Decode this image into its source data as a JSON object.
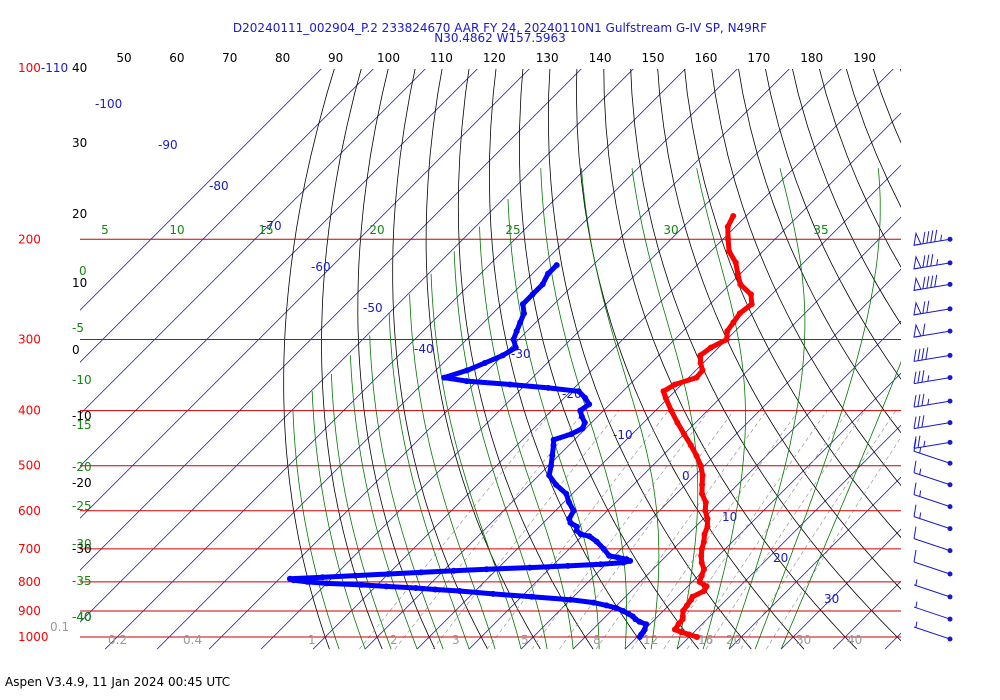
{
  "title": {
    "line1": "D20240111_002904_P.2 233824670 AAR FY 24, 20240110N1 Gulfstream G-IV SP, N49RF",
    "line2": "N30.4862 W157.5963"
  },
  "footer": "Aspen V3.4.9, 11 Jan 2024  00:45 UTC",
  "colors": {
    "temperature": "#ff0000",
    "dewpoint": "#0000ff",
    "isobar": "#cc0000",
    "isotherm": "#2222aa",
    "dry_adiabat": "#000000",
    "moist_adiabat": "#007700",
    "mixing_ratio": "#999999",
    "wind_barb": "#1a1acc"
  },
  "chart_data": {
    "type": "line",
    "subtype": "skew-T log-P diagram",
    "y_axis": {
      "quantity": "pressure (hPa)",
      "scale": "log",
      "range": [
        1000,
        100
      ],
      "ticks": [
        {
          "value": 100,
          "label": "100"
        },
        {
          "value": 200,
          "label": "200"
        },
        {
          "value": 300,
          "label": "300"
        },
        {
          "value": 400,
          "label": "400"
        },
        {
          "value": 500,
          "label": "500"
        },
        {
          "value": 600,
          "label": "600"
        },
        {
          "value": 700,
          "label": "700"
        },
        {
          "value": 800,
          "label": "800"
        },
        {
          "value": 900,
          "label": "900"
        },
        {
          "value": 1000,
          "label": "1000"
        }
      ],
      "extra_label": "-110"
    },
    "top_axis_ticks": [
      "50",
      "60",
      "70",
      "80",
      "90",
      "100",
      "110",
      "120",
      "130",
      "140",
      "150",
      "160",
      "170",
      "180",
      "190"
    ],
    "left_dry_adiabat_labels": [
      "40",
      "30",
      "20",
      "10",
      "0",
      "-10",
      "-20",
      "-30",
      "-40"
    ],
    "isotherm_labels": [
      "-100",
      "-90",
      "-80",
      "-70",
      "-60",
      "-50",
      "-40",
      "-30",
      "-20",
      "-10",
      "0",
      "10",
      "20",
      "30"
    ],
    "moist_adiabat_labels_top": [
      "5",
      "10",
      "15",
      "20",
      "25",
      "30",
      "35"
    ],
    "moist_adiabat_labels_left": [
      "0",
      "-5",
      "-10",
      "-15",
      "-20",
      "-25",
      "-30",
      "-35",
      "-40"
    ],
    "mixing_ratio_labels": [
      "0.1",
      "0.2",
      "0.4",
      "1",
      "2",
      "3",
      "5",
      "8",
      "12",
      "16",
      "20",
      "30",
      "40"
    ],
    "series": [
      {
        "name": "temperature",
        "points": [
          [
            1000,
            21.5
          ],
          [
            990,
            19.5
          ],
          [
            980,
            17.5
          ],
          [
            970,
            15.8
          ],
          [
            950,
            15.5
          ],
          [
            930,
            15.3
          ],
          [
            920,
            14.8
          ],
          [
            900,
            13.8
          ],
          [
            880,
            13.5
          ],
          [
            860,
            13.2
          ],
          [
            850,
            12.9
          ],
          [
            830,
            14
          ],
          [
            815,
            13.6
          ],
          [
            800,
            11.4
          ],
          [
            780,
            10.6
          ],
          [
            760,
            9.8
          ],
          [
            740,
            8.1
          ],
          [
            720,
            6.7
          ],
          [
            700,
            5.5
          ],
          [
            680,
            4.5
          ],
          [
            660,
            3.2
          ],
          [
            640,
            2.3
          ],
          [
            620,
            0.8
          ],
          [
            600,
            -1.2
          ],
          [
            580,
            -2.7
          ],
          [
            560,
            -5.1
          ],
          [
            540,
            -6.8
          ],
          [
            520,
            -8.5
          ],
          [
            500,
            -10.7
          ],
          [
            480,
            -13.5
          ],
          [
            460,
            -16.6
          ],
          [
            440,
            -20
          ],
          [
            420,
            -23.5
          ],
          [
            400,
            -27
          ],
          [
            380,
            -30.5
          ],
          [
            370,
            -32.2
          ],
          [
            360,
            -31.3
          ],
          [
            350,
            -28.5
          ],
          [
            340,
            -28.7
          ],
          [
            330,
            -30.5
          ],
          [
            320,
            -32
          ],
          [
            310,
            -31.5
          ],
          [
            300,
            -30
          ],
          [
            290,
            -31.5
          ],
          [
            280,
            -32
          ],
          [
            270,
            -32.5
          ],
          [
            260,
            -32
          ],
          [
            250,
            -34
          ],
          [
            240,
            -38
          ],
          [
            230,
            -40.5
          ],
          [
            220,
            -43
          ],
          [
            210,
            -46.5
          ],
          [
            200,
            -49
          ],
          [
            190,
            -51.5
          ],
          [
            182,
            -52.5
          ]
        ]
      },
      {
        "name": "dewpoint",
        "points": [
          [
            1000,
            10.5
          ],
          [
            990,
            10.3
          ],
          [
            980,
            10.2
          ],
          [
            970,
            10
          ],
          [
            950,
            9.3
          ],
          [
            940,
            7.5
          ],
          [
            930,
            6.2
          ],
          [
            920,
            5.2
          ],
          [
            910,
            3.8
          ],
          [
            900,
            2.3
          ],
          [
            890,
            0.5
          ],
          [
            880,
            -2
          ],
          [
            870,
            -5
          ],
          [
            860,
            -10
          ],
          [
            850,
            -18
          ],
          [
            840,
            -26
          ],
          [
            830,
            -33
          ],
          [
            825,
            -38
          ],
          [
            820,
            -42
          ],
          [
            815,
            -48
          ],
          [
            810,
            -53
          ],
          [
            805,
            -60
          ],
          [
            800,
            -64
          ],
          [
            795,
            -67
          ],
          [
            790,
            -68
          ],
          [
            785,
            -62
          ],
          [
            780,
            -56
          ],
          [
            775,
            -50
          ],
          [
            770,
            -44
          ],
          [
            765,
            -38
          ],
          [
            760,
            -32
          ],
          [
            755,
            -24
          ],
          [
            750,
            -17
          ],
          [
            745,
            -11
          ],
          [
            740,
            -7
          ],
          [
            735,
            -6
          ],
          [
            730,
            -7
          ],
          [
            725,
            -9
          ],
          [
            720,
            -11
          ],
          [
            700,
            -13.4
          ],
          [
            680,
            -16.1
          ],
          [
            665,
            -18.6
          ],
          [
            660,
            -20.6
          ],
          [
            650,
            -22.1
          ],
          [
            640,
            -22.8
          ],
          [
            630,
            -24.8
          ],
          [
            620,
            -25.8
          ],
          [
            600,
            -26.5
          ],
          [
            580,
            -29
          ],
          [
            560,
            -31.2
          ],
          [
            540,
            -34.9
          ],
          [
            520,
            -38
          ],
          [
            500,
            -39.5
          ],
          [
            480,
            -41.2
          ],
          [
            460,
            -43
          ],
          [
            450,
            -44
          ],
          [
            440,
            -41.7
          ],
          [
            430,
            -40.6
          ],
          [
            420,
            -41.3
          ],
          [
            410,
            -43
          ],
          [
            400,
            -44.5
          ],
          [
            390,
            -44
          ],
          [
            380,
            -46
          ],
          [
            370,
            -48.5
          ],
          [
            365,
            -55
          ],
          [
            360,
            -63
          ],
          [
            355,
            -72
          ],
          [
            350,
            -77
          ],
          [
            340,
            -74
          ],
          [
            330,
            -72
          ],
          [
            320,
            -70
          ],
          [
            310,
            -69
          ],
          [
            300,
            -71
          ],
          [
            290,
            -72
          ],
          [
            280,
            -73
          ],
          [
            270,
            -74
          ],
          [
            260,
            -76
          ],
          [
            250,
            -76
          ],
          [
            240,
            -76
          ],
          [
            230,
            -77
          ],
          [
            222,
            -77
          ]
        ]
      }
    ],
    "wind_barbs": [
      {
        "pressure": 200,
        "speed_kt": 95
      },
      {
        "pressure": 220,
        "speed_kt": 85
      },
      {
        "pressure": 240,
        "speed_kt": 90
      },
      {
        "pressure": 265,
        "speed_kt": 70
      },
      {
        "pressure": 290,
        "speed_kt": 60
      },
      {
        "pressure": 320,
        "speed_kt": 40
      },
      {
        "pressure": 350,
        "speed_kt": 35
      },
      {
        "pressure": 385,
        "speed_kt": 35
      },
      {
        "pressure": 420,
        "speed_kt": 30
      },
      {
        "pressure": 455,
        "speed_kt": 25
      },
      {
        "pressure": 495,
        "speed_kt": 15
      },
      {
        "pressure": 540,
        "speed_kt": 15
      },
      {
        "pressure": 590,
        "speed_kt": 15
      },
      {
        "pressure": 645,
        "speed_kt": 15
      },
      {
        "pressure": 705,
        "speed_kt": 10
      },
      {
        "pressure": 775,
        "speed_kt": 10
      },
      {
        "pressure": 850,
        "speed_kt": 5
      },
      {
        "pressure": 930,
        "speed_kt": 5
      },
      {
        "pressure": 1010,
        "speed_kt": 5
      }
    ],
    "grid": true,
    "legend": "none"
  }
}
